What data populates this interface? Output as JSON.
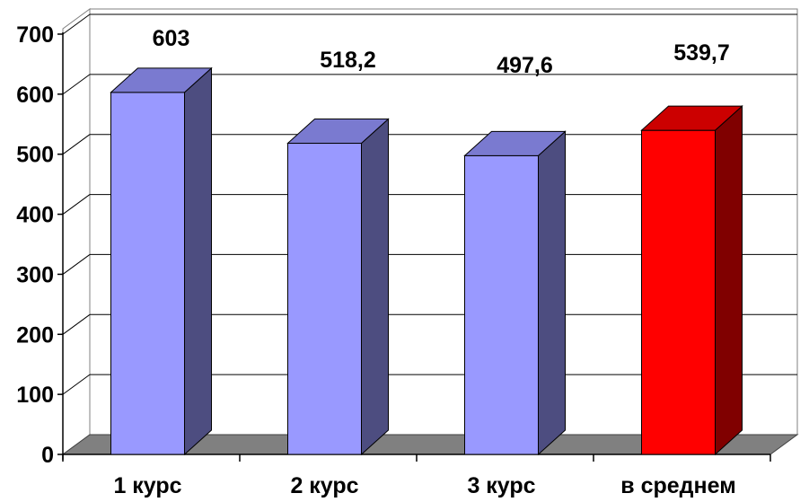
{
  "chart_data": {
    "type": "bar",
    "three_d": true,
    "categories": [
      "1 курс",
      "2 курс",
      "3 курс",
      "в среднем"
    ],
    "values": [
      603,
      518.2,
      497.6,
      539.7
    ],
    "data_labels": [
      "603",
      "518,2",
      "497,6",
      "539,7"
    ],
    "y_ticks": [
      "0",
      "100",
      "200",
      "300",
      "400",
      "500",
      "600",
      "700"
    ],
    "ylim": [
      0,
      700
    ],
    "grid": true,
    "legend": "none",
    "title": "",
    "xlabel": "",
    "ylabel": "",
    "bar_colors": [
      {
        "front": "#9999ff",
        "side": "#4d4d80",
        "top": "#7a7ad0"
      },
      {
        "front": "#9999ff",
        "side": "#4d4d80",
        "top": "#7a7ad0"
      },
      {
        "front": "#9999ff",
        "side": "#4d4d80",
        "top": "#7a7ad0"
      },
      {
        "front": "#ff0000",
        "side": "#800000",
        "top": "#cc0000"
      }
    ],
    "floor_color": "#808080",
    "wall_color": "#ffffff",
    "gridline_color": "#000000"
  }
}
